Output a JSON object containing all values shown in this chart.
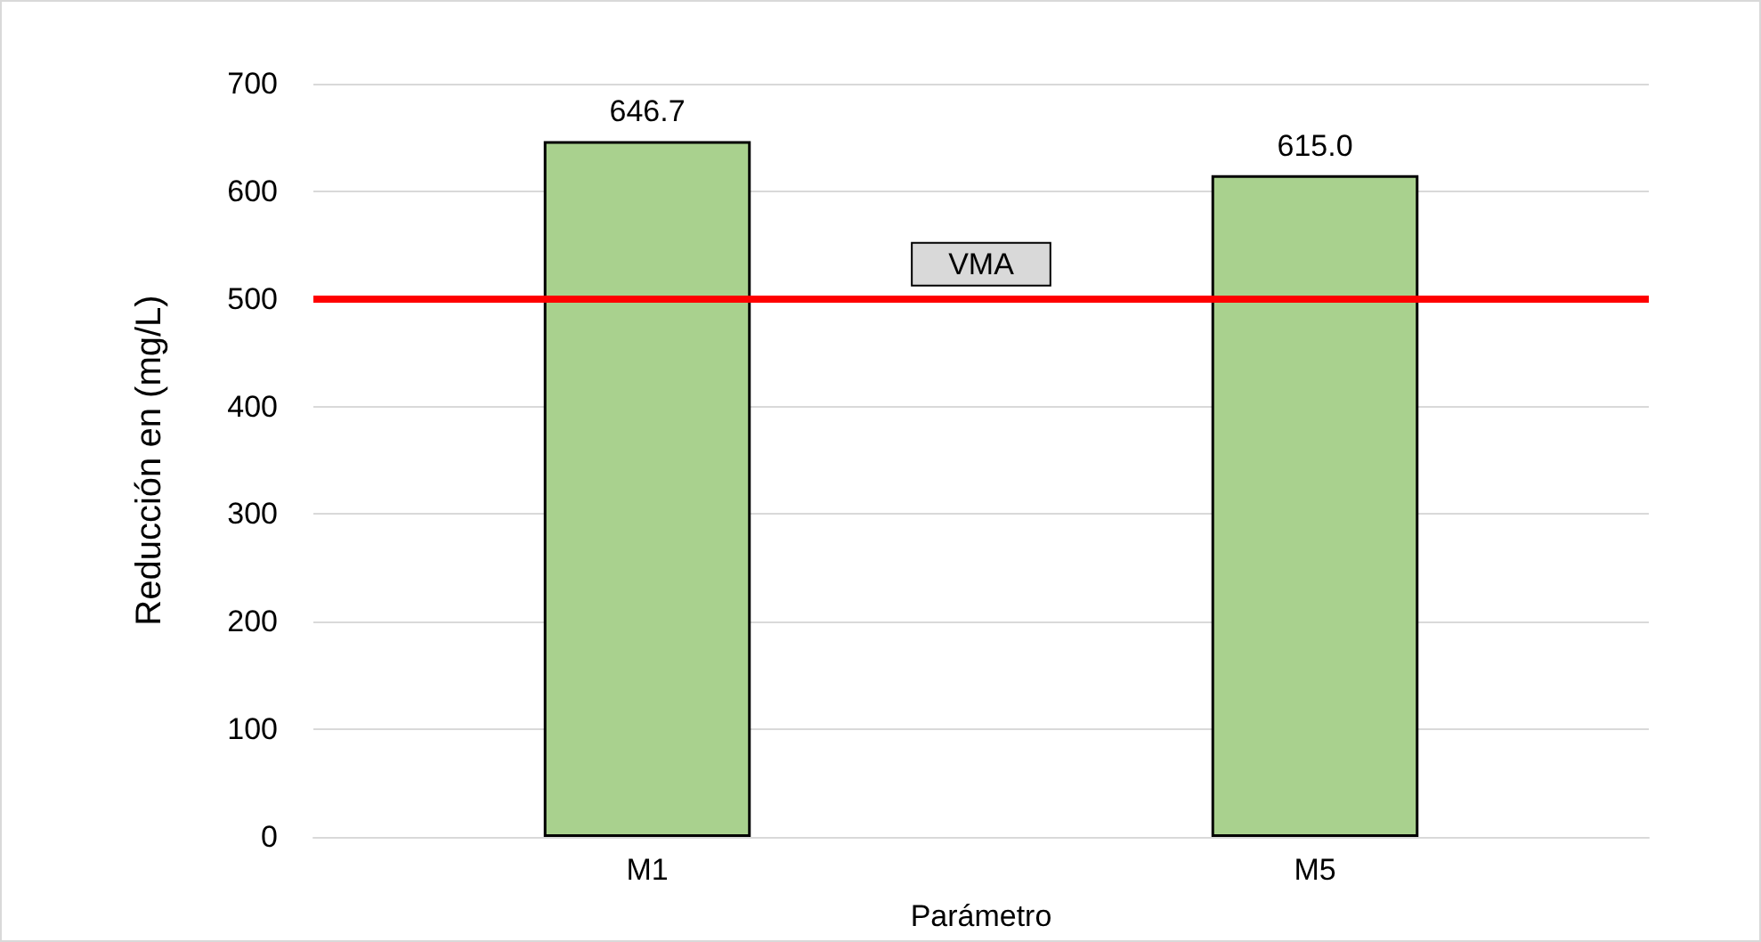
{
  "chart_data": {
    "type": "bar",
    "xlabel": "Parámetro",
    "ylabel": "Reducción en (mg/L)",
    "categories": [
      "M1",
      "M5"
    ],
    "series": [
      {
        "color": "#a9d18e",
        "values": [
          646.7,
          615.0
        ],
        "value_labels": [
          "646.7",
          "615.0"
        ]
      }
    ],
    "ylim": [
      0,
      700
    ],
    "yticks": [
      0,
      100,
      200,
      300,
      400,
      500,
      600,
      700
    ],
    "grid": "y",
    "ref_lines": [
      {
        "axis": "y",
        "value": 500,
        "label": "VMA",
        "color": "#ff0000",
        "line_style": "solid"
      }
    ]
  }
}
